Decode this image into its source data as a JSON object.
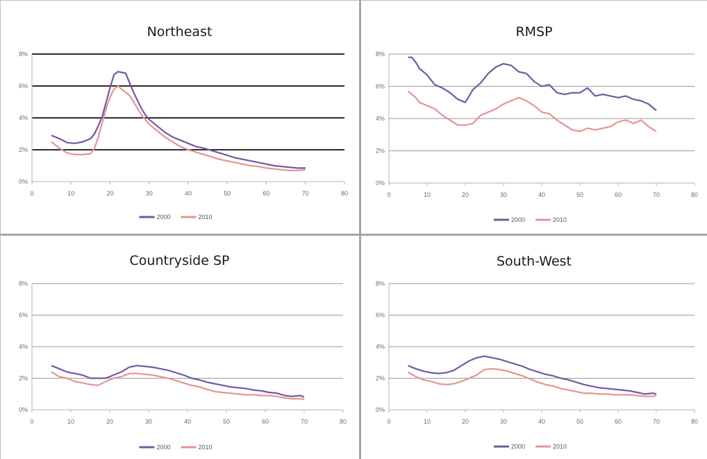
{
  "colors": {
    "series_2000": "#7158a0",
    "series_2010": "#e49590",
    "gridline": "#9a9a9a",
    "gridline_bold": "#2b2b2b",
    "axis": "#b0b0b0"
  },
  "chart_data": [
    {
      "type": "line",
      "title": "Northeast",
      "xlim": [
        0,
        80
      ],
      "ylim": [
        0,
        8
      ],
      "x_ticks": [
        "0",
        "10",
        "20",
        "30",
        "40",
        "50",
        "60",
        "70",
        "80"
      ],
      "y_ticks": [
        "0%",
        "2%",
        "4%",
        "6%",
        "8%"
      ],
      "grid": true,
      "legend": "bottom",
      "series": [
        {
          "name": "2000",
          "x": [
            5,
            7,
            9,
            11,
            13,
            15,
            16,
            17,
            18,
            19,
            20,
            21,
            22,
            23,
            24,
            25,
            26,
            27,
            28,
            29,
            30,
            32,
            34,
            36,
            38,
            40,
            42,
            44,
            46,
            48,
            50,
            52,
            54,
            56,
            58,
            60,
            62,
            64,
            66,
            68,
            70
          ],
          "y": [
            2.9,
            2.7,
            2.45,
            2.4,
            2.5,
            2.7,
            3.0,
            3.5,
            4.1,
            5.0,
            5.9,
            6.7,
            6.9,
            6.85,
            6.8,
            6.2,
            5.6,
            5.1,
            4.6,
            4.2,
            3.9,
            3.5,
            3.1,
            2.8,
            2.6,
            2.4,
            2.2,
            2.1,
            1.95,
            1.8,
            1.65,
            1.5,
            1.4,
            1.3,
            1.2,
            1.1,
            1.0,
            0.95,
            0.9,
            0.85,
            0.85
          ]
        },
        {
          "name": "2010",
          "x": [
            5,
            7,
            9,
            11,
            13,
            15,
            16,
            17,
            18,
            19,
            20,
            21,
            22,
            23,
            24,
            25,
            26,
            27,
            28,
            29,
            30,
            32,
            34,
            36,
            38,
            40,
            42,
            44,
            46,
            48,
            50,
            52,
            54,
            56,
            58,
            60,
            62,
            64,
            66,
            68,
            70
          ],
          "y": [
            2.5,
            2.1,
            1.8,
            1.7,
            1.7,
            1.75,
            2.1,
            2.8,
            3.7,
            4.6,
            5.3,
            5.8,
            6.0,
            5.8,
            5.6,
            5.4,
            5.0,
            4.6,
            4.2,
            3.9,
            3.6,
            3.2,
            2.8,
            2.5,
            2.2,
            2.0,
            1.85,
            1.7,
            1.55,
            1.4,
            1.3,
            1.2,
            1.1,
            1.0,
            0.95,
            0.85,
            0.8,
            0.75,
            0.7,
            0.7,
            0.75
          ]
        }
      ]
    },
    {
      "type": "line",
      "title": "RMSP",
      "xlim": [
        0,
        80
      ],
      "ylim": [
        0,
        8
      ],
      "x_ticks": [
        "0",
        "10",
        "20",
        "30",
        "40",
        "50",
        "60",
        "70",
        "80"
      ],
      "y_ticks": [
        "0%",
        "2%",
        "4%",
        "6%",
        "8%"
      ],
      "grid": true,
      "legend": "bottom",
      "series": [
        {
          "name": "2000",
          "x": [
            5,
            6,
            7,
            8,
            10,
            12,
            14,
            16,
            18,
            20,
            22,
            24,
            26,
            28,
            30,
            32,
            34,
            36,
            38,
            40,
            42,
            44,
            46,
            48,
            50,
            52,
            54,
            56,
            58,
            60,
            62,
            64,
            66,
            68,
            70
          ],
          "y": [
            7.8,
            7.8,
            7.5,
            7.1,
            6.7,
            6.1,
            5.9,
            5.6,
            5.2,
            5.0,
            5.8,
            6.2,
            6.8,
            7.2,
            7.4,
            7.3,
            6.9,
            6.8,
            6.3,
            6.0,
            6.1,
            5.6,
            5.5,
            5.6,
            5.6,
            5.9,
            5.4,
            5.5,
            5.4,
            5.3,
            5.4,
            5.2,
            5.1,
            4.9,
            4.5
          ]
        },
        {
          "name": "2010",
          "x": [
            5,
            6,
            7,
            8,
            10,
            12,
            14,
            16,
            18,
            20,
            22,
            24,
            26,
            28,
            30,
            32,
            34,
            36,
            38,
            40,
            42,
            44,
            46,
            48,
            50,
            52,
            54,
            56,
            58,
            60,
            62,
            64,
            66,
            68,
            70
          ],
          "y": [
            5.7,
            5.5,
            5.3,
            5.0,
            4.8,
            4.6,
            4.2,
            3.9,
            3.6,
            3.6,
            3.7,
            4.2,
            4.4,
            4.6,
            4.9,
            5.1,
            5.3,
            5.1,
            4.8,
            4.4,
            4.3,
            3.9,
            3.6,
            3.3,
            3.2,
            3.4,
            3.3,
            3.4,
            3.5,
            3.8,
            3.9,
            3.7,
            3.9,
            3.5,
            3.2
          ]
        }
      ]
    },
    {
      "type": "line",
      "title": "Countryside SP",
      "xlim": [
        0,
        80
      ],
      "ylim": [
        0,
        8
      ],
      "x_ticks": [
        "0",
        "10",
        "20",
        "30",
        "40",
        "50",
        "60",
        "70",
        "80"
      ],
      "y_ticks": [
        "0%",
        "2%",
        "4%",
        "6%",
        "8%"
      ],
      "grid": true,
      "legend": "bottom",
      "series": [
        {
          "name": "2000",
          "x": [
            5,
            7,
            9,
            11,
            13,
            15,
            17,
            19,
            21,
            23,
            25,
            27,
            29,
            31,
            33,
            35,
            37,
            39,
            41,
            43,
            45,
            47,
            49,
            51,
            53,
            55,
            57,
            59,
            61,
            63,
            65,
            67,
            69,
            70
          ],
          "y": [
            2.8,
            2.6,
            2.4,
            2.3,
            2.2,
            2.0,
            2.0,
            2.0,
            2.2,
            2.4,
            2.7,
            2.8,
            2.75,
            2.7,
            2.6,
            2.5,
            2.35,
            2.2,
            2.0,
            1.9,
            1.75,
            1.65,
            1.55,
            1.45,
            1.4,
            1.35,
            1.25,
            1.2,
            1.1,
            1.05,
            0.9,
            0.85,
            0.9,
            0.8
          ]
        },
        {
          "name": "2010",
          "x": [
            5,
            7,
            9,
            11,
            13,
            15,
            17,
            19,
            21,
            23,
            25,
            27,
            29,
            31,
            33,
            35,
            37,
            39,
            41,
            43,
            45,
            47,
            49,
            51,
            53,
            55,
            57,
            59,
            61,
            63,
            65,
            67,
            69,
            70
          ],
          "y": [
            2.4,
            2.1,
            2.0,
            1.8,
            1.7,
            1.6,
            1.55,
            1.8,
            2.0,
            2.1,
            2.3,
            2.3,
            2.25,
            2.2,
            2.1,
            2.0,
            1.85,
            1.7,
            1.55,
            1.45,
            1.3,
            1.15,
            1.1,
            1.05,
            1.0,
            0.95,
            0.95,
            0.9,
            0.9,
            0.85,
            0.75,
            0.7,
            0.7,
            0.65
          ]
        }
      ]
    },
    {
      "type": "line",
      "title": "South-West",
      "xlim": [
        0,
        80
      ],
      "ylim": [
        0,
        8
      ],
      "x_ticks": [
        "0",
        "10",
        "20",
        "30",
        "40",
        "50",
        "60",
        "70",
        "80"
      ],
      "y_ticks": [
        "0%",
        "2%",
        "4%",
        "6%",
        "8%"
      ],
      "grid": true,
      "legend": "bottom",
      "series": [
        {
          "name": "2000",
          "x": [
            5,
            7,
            9,
            11,
            13,
            15,
            17,
            19,
            21,
            23,
            25,
            27,
            29,
            31,
            33,
            35,
            37,
            39,
            41,
            43,
            45,
            47,
            49,
            51,
            53,
            55,
            57,
            59,
            61,
            63,
            65,
            67,
            69,
            70
          ],
          "y": [
            2.8,
            2.6,
            2.45,
            2.35,
            2.3,
            2.35,
            2.5,
            2.8,
            3.1,
            3.3,
            3.4,
            3.3,
            3.2,
            3.05,
            2.9,
            2.75,
            2.55,
            2.4,
            2.25,
            2.15,
            2.0,
            1.9,
            1.75,
            1.6,
            1.5,
            1.4,
            1.35,
            1.3,
            1.25,
            1.2,
            1.1,
            1.0,
            1.05,
            1.0
          ]
        },
        {
          "name": "2010",
          "x": [
            5,
            7,
            9,
            11,
            13,
            15,
            17,
            19,
            21,
            23,
            25,
            27,
            29,
            31,
            33,
            35,
            37,
            39,
            41,
            43,
            45,
            47,
            49,
            51,
            53,
            55,
            57,
            59,
            61,
            63,
            65,
            67,
            69,
            70
          ],
          "y": [
            2.4,
            2.1,
            1.9,
            1.8,
            1.65,
            1.6,
            1.65,
            1.8,
            2.0,
            2.2,
            2.55,
            2.6,
            2.55,
            2.45,
            2.3,
            2.15,
            1.95,
            1.75,
            1.6,
            1.5,
            1.35,
            1.25,
            1.15,
            1.05,
            1.05,
            1.0,
            1.0,
            0.95,
            0.95,
            0.95,
            0.9,
            0.85,
            0.85,
            0.9
          ]
        }
      ]
    }
  ]
}
